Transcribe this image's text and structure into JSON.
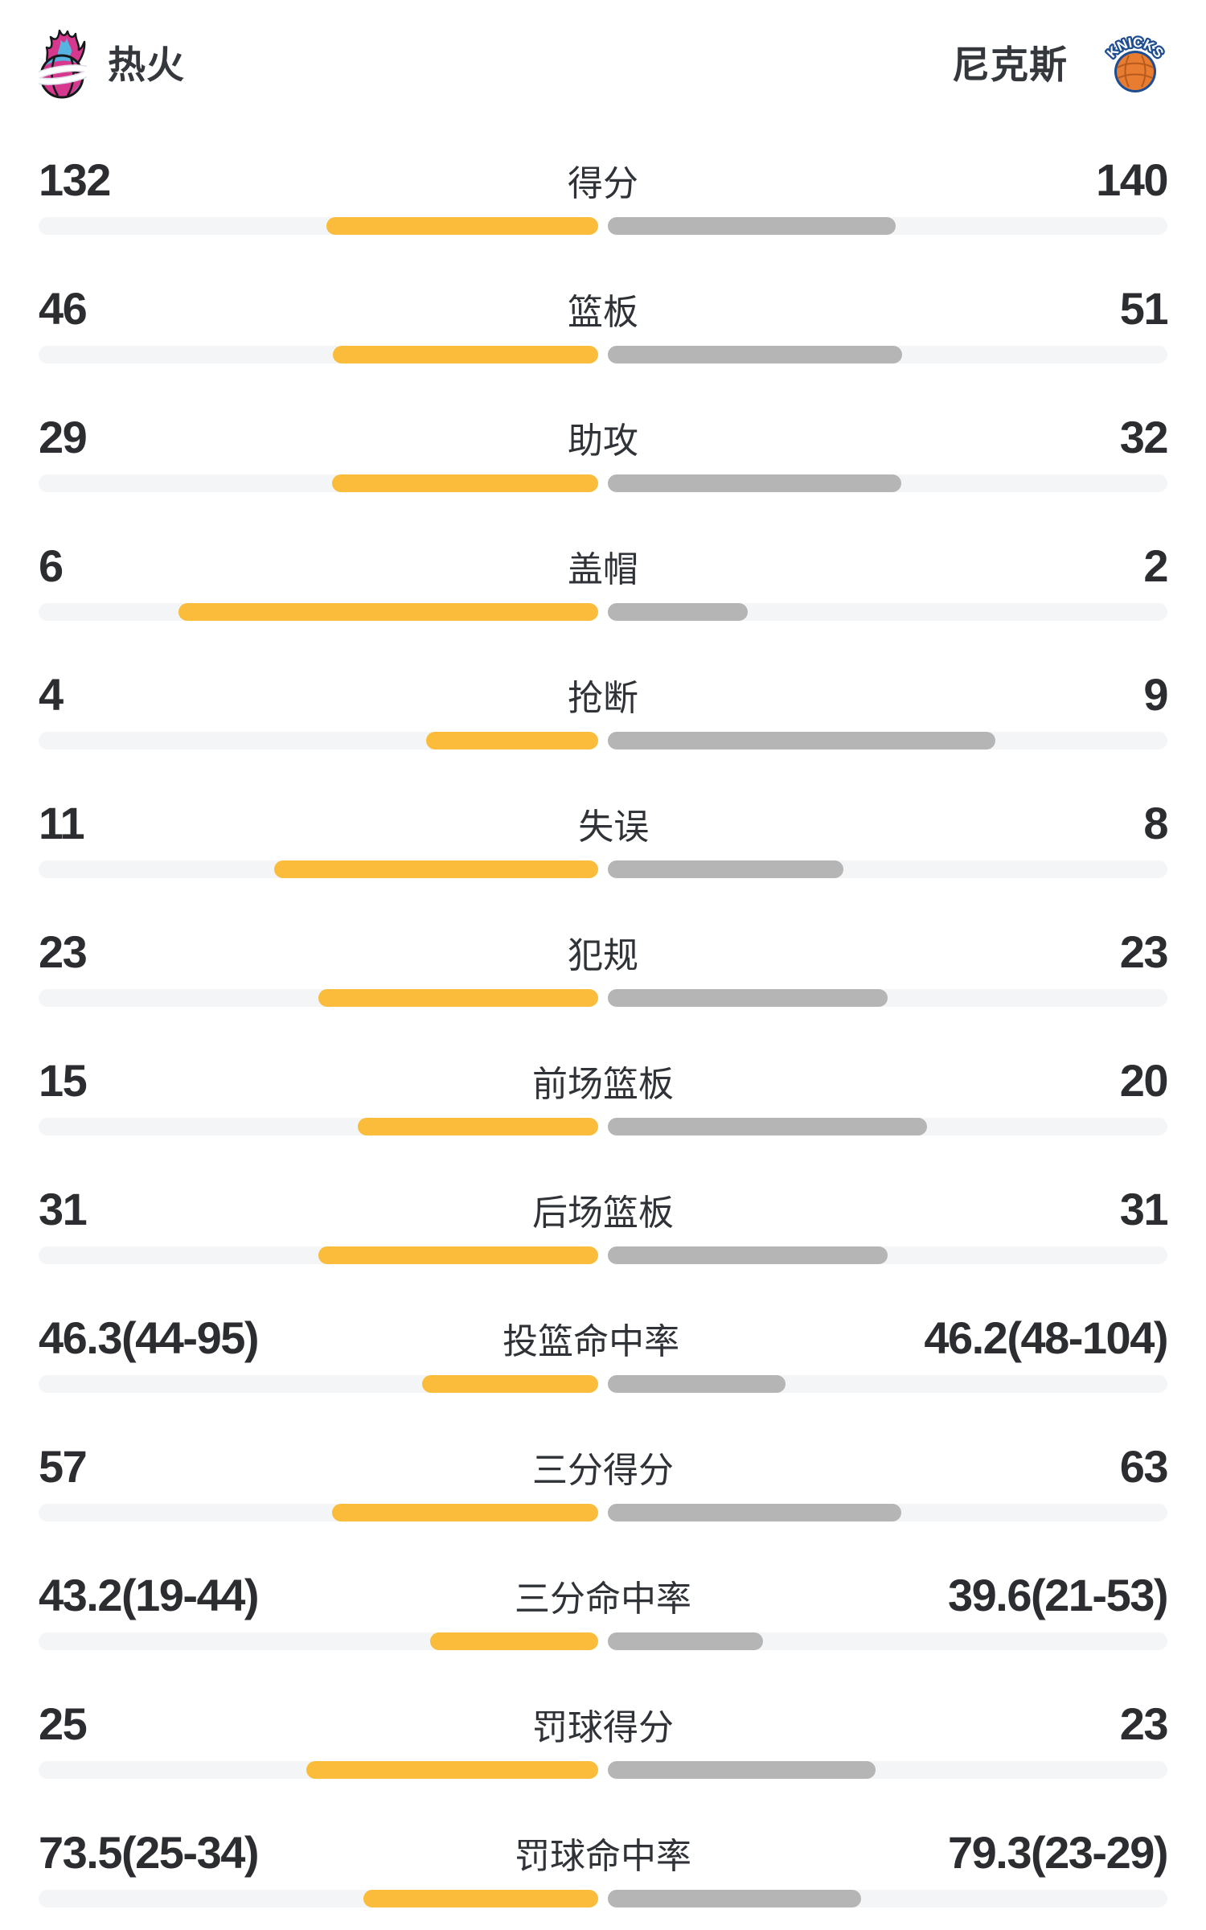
{
  "header": {
    "left_team": {
      "name": "热火",
      "logo": "heat-flaming-basketball"
    },
    "right_team": {
      "name": "尼克斯",
      "logo": "knicks-basketball",
      "logo_text": "KNICKS"
    }
  },
  "colors": {
    "left_bar": "#FBBC3C",
    "right_bar": "#B5B5B6",
    "bar_track": "#F4F5F6",
    "value_text": "#2B2D31",
    "label_text": "#2F3237",
    "heat_pink": "#D6388D",
    "heat_blue": "#55B5E0",
    "knicks_orange": "#E87C30",
    "knicks_navy": "#1E4E91"
  },
  "chart_data": {
    "type": "bar",
    "subtype": "paired-horizontal-team-comparison",
    "teams": [
      "热火",
      "尼克斯"
    ],
    "legend_position": "header",
    "grid": false,
    "rows": [
      {
        "label": "得分",
        "left": "132",
        "right": "140",
        "left_fill": 0.485,
        "right_fill": 0.515
      },
      {
        "label": "篮板",
        "left": "46",
        "right": "51",
        "left_fill": 0.474,
        "right_fill": 0.526
      },
      {
        "label": "助攻",
        "left": "29",
        "right": "32",
        "left_fill": 0.475,
        "right_fill": 0.525
      },
      {
        "label": "盖帽",
        "left": "6",
        "right": "2",
        "left_fill": 0.75,
        "right_fill": 0.25
      },
      {
        "label": "抢断",
        "left": "4",
        "right": "9",
        "left_fill": 0.308,
        "right_fill": 0.692
      },
      {
        "label": "失误",
        "left": "11",
        "right": "8",
        "left_fill": 0.579,
        "right_fill": 0.421
      },
      {
        "label": "犯规",
        "left": "23",
        "right": "23",
        "left_fill": 0.5,
        "right_fill": 0.5
      },
      {
        "label": "前场篮板",
        "left": "15",
        "right": "20",
        "left_fill": 0.429,
        "right_fill": 0.571
      },
      {
        "label": "后场篮板",
        "left": "31",
        "right": "31",
        "left_fill": 0.5,
        "right_fill": 0.5
      },
      {
        "label": "投篮命中率",
        "left": "46.3(44-95)",
        "right": "46.2(48-104)",
        "left_fill": 0.315,
        "right_fill": 0.318
      },
      {
        "label": "三分得分",
        "left": "57",
        "right": "63",
        "left_fill": 0.475,
        "right_fill": 0.525
      },
      {
        "label": "三分命中率",
        "left": "43.2(19-44)",
        "right": "39.6(21-53)",
        "left_fill": 0.3,
        "right_fill": 0.277
      },
      {
        "label": "罚球得分",
        "left": "25",
        "right": "23",
        "left_fill": 0.521,
        "right_fill": 0.479
      },
      {
        "label": "罚球命中率",
        "left": "73.5(25-34)",
        "right": "79.3(23-29)",
        "left_fill": 0.42,
        "right_fill": 0.453
      }
    ]
  }
}
